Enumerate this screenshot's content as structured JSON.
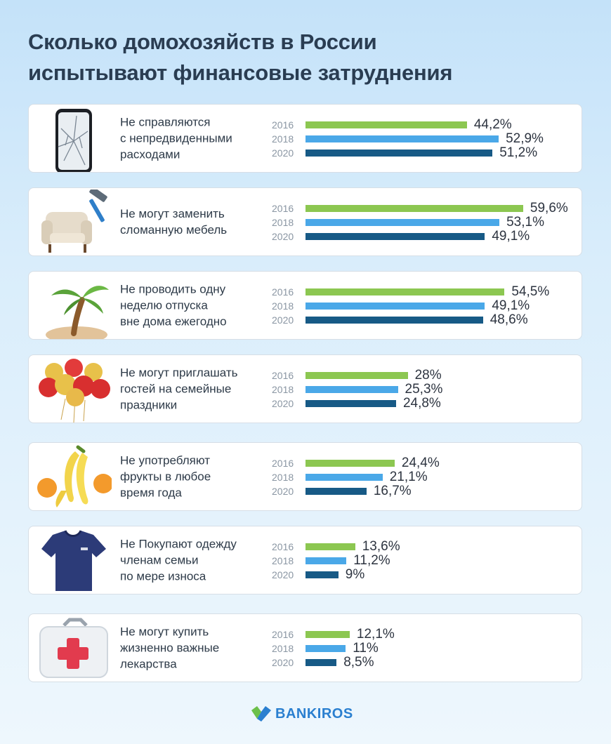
{
  "title": "Сколько домохозяйств в России\nиспытывают финансовые затруднения",
  "colors": {
    "y2016": "#8cc751",
    "y2018": "#4aa8e8",
    "y2020": "#175a86"
  },
  "brand": {
    "name": "BANKIROS",
    "color": "#2a7fd0",
    "mark_green": "#6cc04a",
    "mark_blue": "#2a7fd0"
  },
  "chart_data": {
    "type": "bar",
    "orientation": "horizontal",
    "title": "Сколько домохозяйств в России испытывают финансовые затруднения",
    "unit": "%",
    "xlim": [
      0,
      50
    ],
    "series_names": [
      "2016",
      "2018",
      "2020"
    ],
    "groups": [
      {
        "icon": "cracked-phone-icon",
        "label": "Не справляются\nс непредвиденными\nрасходами",
        "rows": [
          {
            "year": "2016",
            "value": 44.2,
            "text": "44,2%"
          },
          {
            "year": "2018",
            "value": 52.9,
            "text": "52,9%"
          },
          {
            "year": "2020",
            "value": 51.2,
            "text": "51,2%"
          }
        ]
      },
      {
        "icon": "armchair-hammer-icon",
        "label": "Не могут заменить\nсломанную мебель",
        "rows": [
          {
            "year": "2016",
            "value": 59.6,
            "text": "59,6%"
          },
          {
            "year": "2018",
            "value": 53.1,
            "text": "53,1%"
          },
          {
            "year": "2020",
            "value": 49.1,
            "text": "49,1%"
          }
        ]
      },
      {
        "icon": "palm-tree-icon",
        "label": "Не проводить одну\nнеделю отпуска\nвне дома ежегодно",
        "rows": [
          {
            "year": "2016",
            "value": 54.5,
            "text": "54,5%"
          },
          {
            "year": "2018",
            "value": 49.1,
            "text": "49,1%"
          },
          {
            "year": "2020",
            "value": 48.6,
            "text": "48,6%"
          }
        ]
      },
      {
        "icon": "balloons-icon",
        "label": "Не могут приглашать\nгостей на семейные\nпраздники",
        "rows": [
          {
            "year": "2016",
            "value": 28,
            "text": "28%"
          },
          {
            "year": "2018",
            "value": 25.3,
            "text": "25,3%"
          },
          {
            "year": "2020",
            "value": 24.8,
            "text": "24,8%"
          }
        ]
      },
      {
        "icon": "fruits-icon",
        "label": "Не употребляют\nфрукты в любое\nвремя года",
        "rows": [
          {
            "year": "2016",
            "value": 24.4,
            "text": "24,4%"
          },
          {
            "year": "2018",
            "value": 21.1,
            "text": "21,1%"
          },
          {
            "year": "2020",
            "value": 16.7,
            "text": "16,7%"
          }
        ]
      },
      {
        "icon": "t-shirt-icon",
        "label": "Не Покупают одежду\nчленам семьи\nпо мере износа",
        "rows": [
          {
            "year": "2016",
            "value": 13.6,
            "text": "13,6%"
          },
          {
            "year": "2018",
            "value": 11.2,
            "text": "11,2%"
          },
          {
            "year": "2020",
            "value": 9,
            "text": "9%"
          }
        ]
      },
      {
        "icon": "first-aid-kit-icon",
        "label": "Не могут купить\nжизненно важные\nлекарства",
        "rows": [
          {
            "year": "2016",
            "value": 12.1,
            "text": "12,1%"
          },
          {
            "year": "2018",
            "value": 11,
            "text": "11%"
          },
          {
            "year": "2020",
            "value": 8.5,
            "text": "8,5%"
          }
        ]
      }
    ]
  }
}
